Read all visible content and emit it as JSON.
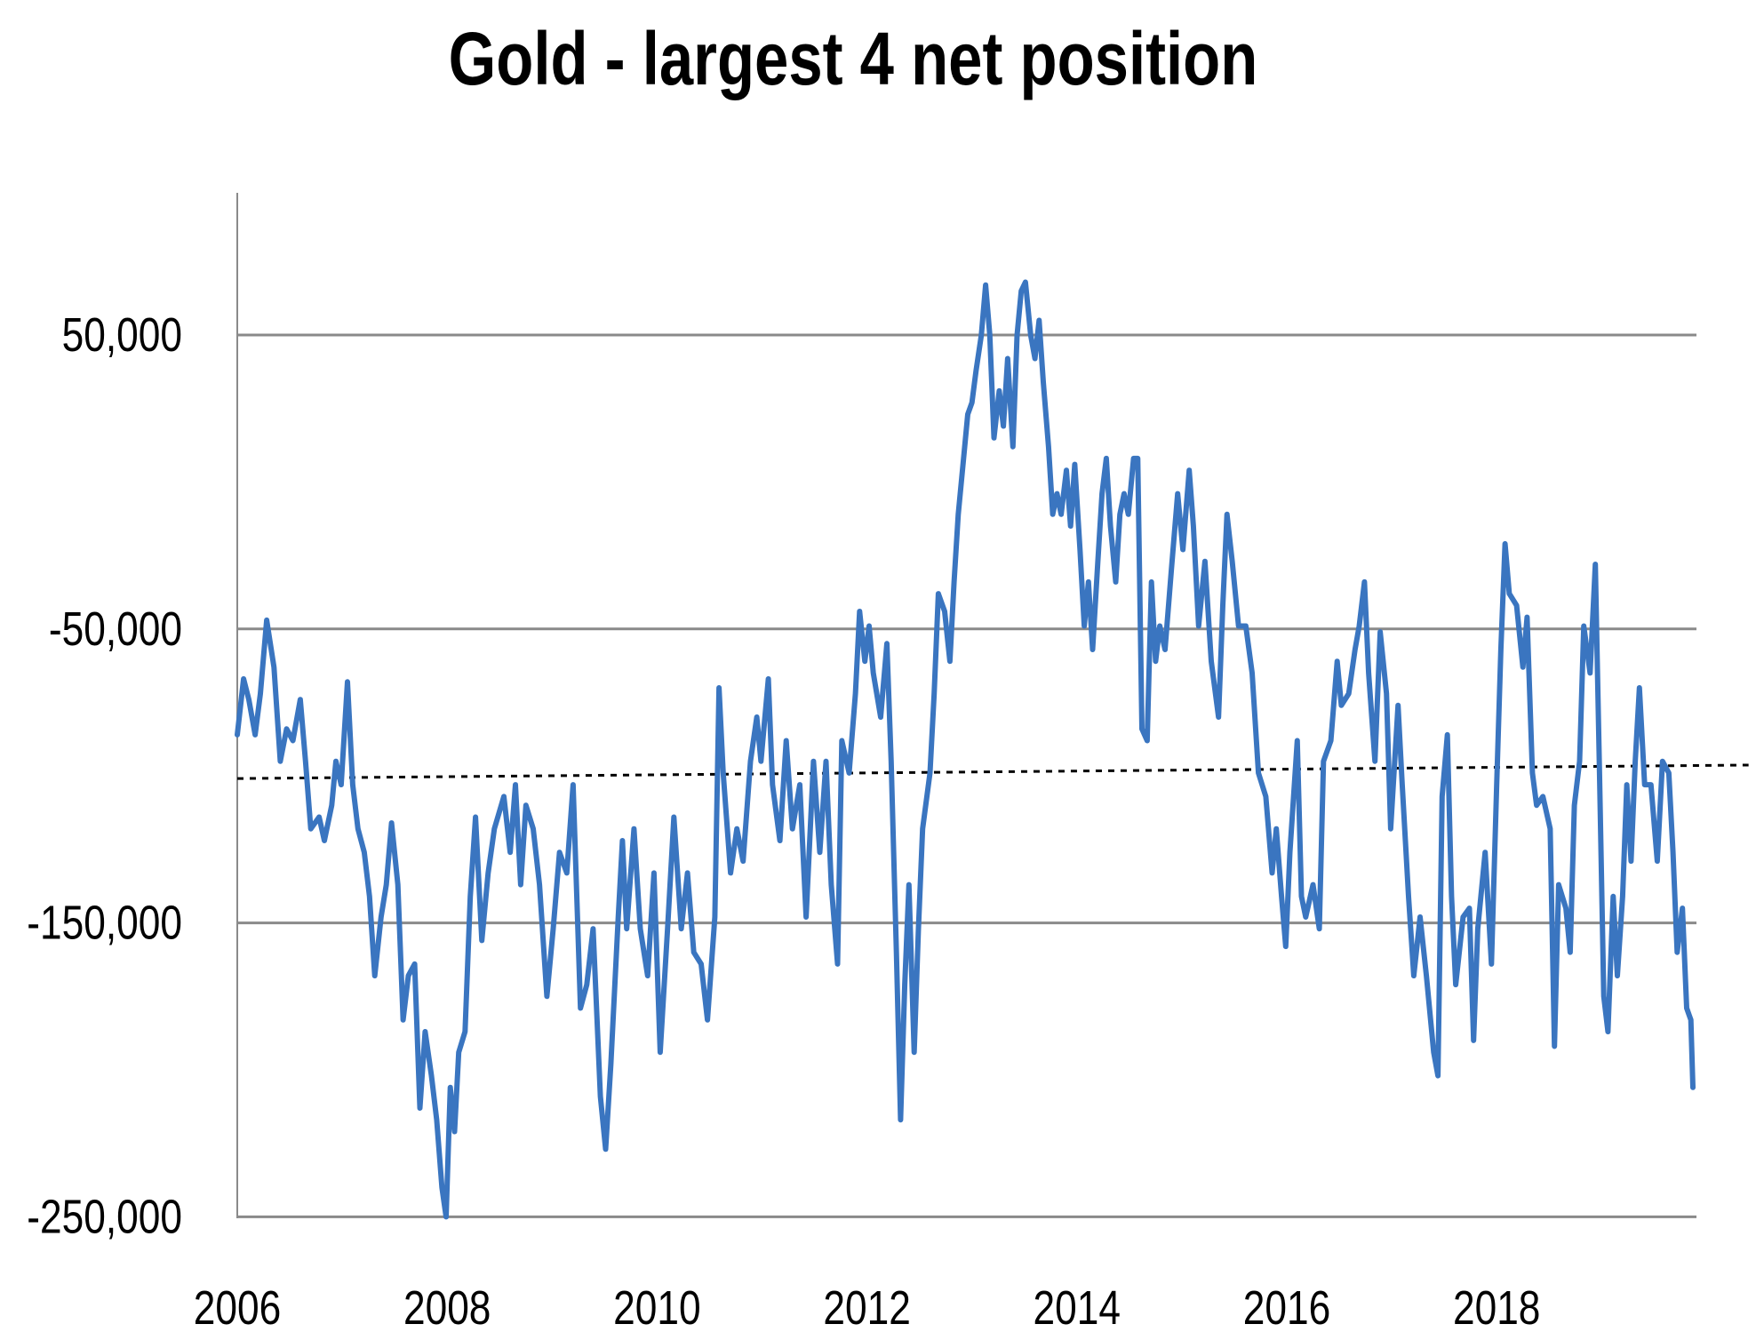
{
  "chart_data": {
    "type": "line",
    "title": "Gold - largest 4 net position",
    "xlabel": "",
    "ylabel": "",
    "xlim": [
      2006,
      2020
    ],
    "ylim": [
      -250000,
      100000
    ],
    "grid": true,
    "legend": "none",
    "x_ticks": [
      2006,
      2008,
      2010,
      2012,
      2014,
      2016,
      2018
    ],
    "x_tick_labels": [
      "2006",
      "2008",
      "2010",
      "2012",
      "2014",
      "2016",
      "2018"
    ],
    "y_ticks": [
      50000,
      -50000,
      -150000,
      -250000
    ],
    "y_tick_labels": [
      "50,000",
      "-50,000",
      "-150,000",
      "-250,000"
    ],
    "series_color": "#3a75c0",
    "trendline": {
      "style": "dotted",
      "color": "#000000",
      "x": [
        2006,
        2020.4
      ],
      "y": [
        -100900,
        -96300
      ]
    },
    "series": [
      {
        "name": "Gold - largest 4 net position",
        "x": [
          2006.0,
          2006.06,
          2006.11,
          2006.17,
          2006.22,
          2006.28,
          2006.35,
          2006.41,
          2006.47,
          2006.53,
          2006.6,
          2006.65,
          2006.7,
          2006.78,
          2006.83,
          2006.9,
          2006.94,
          2006.99,
          2007.05,
          2007.1,
          2007.15,
          2007.21,
          2007.26,
          2007.31,
          2007.37,
          2007.42,
          2007.47,
          2007.53,
          2007.58,
          2007.63,
          2007.69,
          2007.74,
          2007.79,
          2007.85,
          2007.9,
          2007.95,
          2007.99,
          2008.03,
          2008.07,
          2008.11,
          2008.17,
          2008.22,
          2008.27,
          2008.33,
          2008.39,
          2008.45,
          2008.54,
          2008.6,
          2008.65,
          2008.7,
          2008.75,
          2008.82,
          2008.88,
          2008.95,
          2009.01,
          2009.07,
          2009.14,
          2009.2,
          2009.27,
          2009.33,
          2009.39,
          2009.46,
          2009.51,
          2009.56,
          2009.63,
          2009.67,
          2009.71,
          2009.78,
          2009.84,
          2009.91,
          2009.97,
          2010.03,
          2010.1,
          2010.16,
          2010.23,
          2010.29,
          2010.35,
          2010.42,
          2010.48,
          2010.55,
          2010.59,
          2010.63,
          2010.7,
          2010.76,
          2010.82,
          2010.89,
          2010.95,
          2010.99,
          2011.06,
          2011.1,
          2011.17,
          2011.23,
          2011.29,
          2011.36,
          2011.42,
          2011.49,
          2011.55,
          2011.61,
          2011.66,
          2011.72,
          2011.76,
          2011.83,
          2011.89,
          2011.93,
          2011.98,
          2012.02,
          2012.06,
          2012.13,
          2012.19,
          2012.23,
          2012.28,
          2012.32,
          2012.36,
          2012.4,
          2012.45,
          2012.49,
          2012.53,
          2012.6,
          2012.64,
          2012.68,
          2012.74,
          2012.79,
          2012.83,
          2012.87,
          2012.92,
          2012.96,
          2013.0,
          2013.04,
          2013.09,
          2013.13,
          2013.17,
          2013.21,
          2013.26,
          2013.3,
          2013.34,
          2013.39,
          2013.43,
          2013.47,
          2013.51,
          2013.56,
          2013.6,
          2013.64,
          2013.68,
          2013.73,
          2013.77,
          2013.81,
          2013.85,
          2013.9,
          2013.94,
          2013.98,
          2014.03,
          2014.07,
          2014.11,
          2014.15,
          2014.2,
          2014.24,
          2014.28,
          2014.32,
          2014.37,
          2014.41,
          2014.45,
          2014.49,
          2014.54,
          2014.58,
          2014.62,
          2014.67,
          2014.71,
          2014.75,
          2014.79,
          2014.84,
          2014.9,
          2014.96,
          2015.01,
          2015.07,
          2015.11,
          2015.16,
          2015.22,
          2015.28,
          2015.35,
          2015.39,
          2015.43,
          2015.48,
          2015.54,
          2015.61,
          2015.67,
          2015.73,
          2015.8,
          2015.86,
          2015.9,
          2015.95,
          2015.99,
          2016.03,
          2016.1,
          2016.14,
          2016.18,
          2016.25,
          2016.31,
          2016.35,
          2016.42,
          2016.48,
          2016.52,
          2016.59,
          2016.65,
          2016.69,
          2016.74,
          2016.78,
          2016.84,
          2016.89,
          2016.95,
          2016.99,
          2017.06,
          2017.1,
          2017.16,
          2017.21,
          2017.27,
          2017.33,
          2017.4,
          2017.44,
          2017.48,
          2017.53,
          2017.57,
          2017.61,
          2017.68,
          2017.74,
          2017.78,
          2017.82,
          2017.89,
          2017.95,
          2018.0,
          2018.04,
          2018.08,
          2018.12,
          2018.19,
          2018.25,
          2018.29,
          2018.34,
          2018.38,
          2018.44,
          2018.51,
          2018.55,
          2018.59,
          2018.66,
          2018.7,
          2018.74,
          2018.79,
          2018.83,
          2018.89,
          2018.94,
          2018.98,
          2019.02,
          2019.06,
          2019.11,
          2019.15,
          2019.2,
          2019.24,
          2019.28,
          2019.32,
          2019.36,
          2019.41,
          2019.47,
          2019.53,
          2019.58,
          2019.64,
          2019.68,
          2019.72,
          2019.77,
          2019.81,
          2019.85,
          2019.87
        ],
        "y": [
          -86000,
          -67000,
          -74000,
          -86000,
          -72000,
          -47000,
          -63000,
          -95000,
          -84000,
          -88000,
          -74000,
          -95000,
          -118000,
          -114000,
          -122000,
          -110000,
          -95000,
          -103000,
          -68000,
          -103000,
          -118000,
          -126000,
          -141000,
          -168000,
          -148000,
          -137000,
          -116000,
          -137000,
          -183000,
          -168000,
          -164000,
          -213000,
          -187000,
          -202000,
          -217000,
          -240000,
          -250000,
          -206000,
          -221000,
          -194000,
          -187000,
          -141000,
          -114000,
          -156000,
          -133000,
          -118000,
          -107000,
          -126000,
          -103000,
          -137000,
          -110000,
          -118000,
          -137000,
          -175000,
          -152000,
          -126000,
          -133000,
          -103000,
          -179000,
          -171000,
          -152000,
          -209000,
          -227000,
          -198000,
          -148000,
          -122000,
          -152000,
          -118000,
          -152000,
          -168000,
          -133000,
          -194000,
          -152000,
          -114000,
          -152000,
          -133000,
          -160000,
          -164000,
          -183000,
          -148000,
          -70000,
          -99000,
          -133000,
          -118000,
          -129000,
          -95000,
          -80000,
          -95000,
          -67000,
          -103000,
          -122000,
          -88000,
          -118000,
          -103000,
          -148000,
          -95000,
          -126000,
          -95000,
          -137000,
          -164000,
          -88000,
          -99000,
          -72000,
          -44000,
          -61000,
          -49000,
          -65000,
          -80000,
          -55000,
          -95000,
          -160000,
          -217000,
          -171000,
          -137000,
          -194000,
          -152000,
          -118000,
          -99000,
          -72000,
          -38000,
          -44000,
          -61000,
          -34000,
          -11000,
          8000,
          23000,
          27000,
          38000,
          50000,
          67000,
          50000,
          15000,
          31000,
          19000,
          42000,
          12000,
          50000,
          65000,
          68000,
          50000,
          42000,
          55000,
          34000,
          12000,
          -11000,
          -4000,
          -11000,
          4000,
          -15000,
          6000,
          -23000,
          -49000,
          -34000,
          -57000,
          -27000,
          -4000,
          8000,
          -15000,
          -34000,
          -11000,
          -4000,
          -11000,
          8000,
          8000,
          -84000,
          -88000,
          -34000,
          -61000,
          -49000,
          -57000,
          -30000,
          -4000,
          -23000,
          4000,
          -15000,
          -49000,
          -27000,
          -61000,
          -80000,
          -42000,
          -11000,
          -27000,
          -49000,
          -49000,
          -65000,
          -99000,
          -107000,
          -133000,
          -118000,
          -141000,
          -158000,
          -126000,
          -88000,
          -141000,
          -148000,
          -137000,
          -152000,
          -95000,
          -88000,
          -61000,
          -76000,
          -72000,
          -57000,
          -49000,
          -34000,
          -65000,
          -95000,
          -51000,
          -72000,
          -118000,
          -76000,
          -103000,
          -141000,
          -168000,
          -148000,
          -168000,
          -194000,
          -202000,
          -107000,
          -86000,
          -141000,
          -171000,
          -148000,
          -145000,
          -190000,
          -152000,
          -126000,
          -164000,
          -103000,
          -57000,
          -21000,
          -38000,
          -42000,
          -63000,
          -46000,
          -99000,
          -110000,
          -107000,
          -118000,
          -192000,
          -137000,
          -145000,
          -160000,
          -110000,
          -95000,
          -49000,
          -65000,
          -28000,
          -99000,
          -175000,
          -187000,
          -141000,
          -168000,
          -141000,
          -103000,
          -129000,
          -95000,
          -70000,
          -103000,
          -103000,
          -129000,
          -95000,
          -99000,
          -126000,
          -160000,
          -145000,
          -179000,
          -183000,
          -206000
        ]
      }
    ]
  }
}
